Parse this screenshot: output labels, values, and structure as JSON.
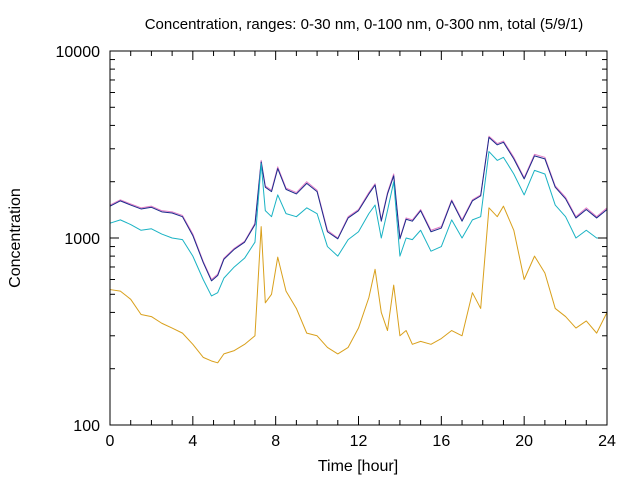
{
  "chart_data": {
    "type": "line",
    "title": "Concentration, ranges: 0-30 nm, 0-100 nm, 0-300 nm, total (5/9/1)",
    "xlabel": "Time [hour]",
    "ylabel": "Concentration",
    "xlim": [
      0,
      24
    ],
    "ylim": [
      100,
      10000
    ],
    "yscale": "log",
    "grid": false,
    "x_ticks": [
      0,
      4,
      8,
      12,
      16,
      20,
      24
    ],
    "x_tick_labels": [
      "0",
      "4",
      "8",
      "12",
      "16",
      "20",
      "24"
    ],
    "y_ticks": [
      100,
      1000,
      10000
    ],
    "y_tick_labels": [
      "100",
      "1000",
      "10000"
    ],
    "x": [
      0,
      0.5,
      1,
      1.5,
      2,
      2.5,
      3,
      3.5,
      4,
      4.5,
      4.9,
      5.2,
      5.5,
      6,
      6.5,
      7,
      7.3,
      7.5,
      7.8,
      8.1,
      8.5,
      9,
      9.5,
      10,
      10.5,
      11,
      11.5,
      12,
      12.5,
      12.8,
      13.1,
      13.4,
      13.7,
      14,
      14.3,
      14.6,
      15,
      15.5,
      16,
      16.5,
      17,
      17.5,
      17.9,
      18.3,
      18.7,
      19,
      19.5,
      20,
      20.5,
      21,
      21.5,
      22,
      22.5,
      23,
      23.5,
      24
    ],
    "series": [
      {
        "color": "#e07cc5",
        "values": [
          1500,
          1600,
          1520,
          1450,
          1480,
          1400,
          1380,
          1320,
          1050,
          750,
          600,
          640,
          780,
          880,
          960,
          1200,
          2600,
          1900,
          1800,
          2400,
          1850,
          1750,
          2000,
          1800,
          1100,
          1000,
          1300,
          1420,
          1750,
          1950,
          1250,
          1750,
          2200,
          1000,
          1280,
          1250,
          1420,
          1100,
          1150,
          1600,
          1250,
          1600,
          1700,
          3500,
          3200,
          3300,
          2700,
          2100,
          2800,
          2700,
          1900,
          1650,
          1300,
          1450,
          1300,
          1450
        ]
      },
      {
        "color": "#1a2b8c",
        "values": [
          1480,
          1580,
          1500,
          1430,
          1460,
          1380,
          1360,
          1300,
          1030,
          740,
          590,
          630,
          770,
          870,
          950,
          1180,
          2550,
          1870,
          1770,
          2350,
          1820,
          1720,
          1960,
          1770,
          1080,
          990,
          1280,
          1400,
          1720,
          1920,
          1230,
          1720,
          2150,
          990,
          1260,
          1230,
          1400,
          1080,
          1130,
          1580,
          1230,
          1580,
          1680,
          3450,
          3150,
          3250,
          2650,
          2070,
          2750,
          2650,
          1870,
          1620,
          1280,
          1420,
          1280,
          1420
        ]
      },
      {
        "color": "#1ab3c4",
        "values": [
          1200,
          1250,
          1180,
          1100,
          1120,
          1050,
          1000,
          980,
          800,
          600,
          490,
          510,
          610,
          700,
          780,
          950,
          2500,
          1400,
          1300,
          1700,
          1350,
          1300,
          1450,
          1350,
          900,
          800,
          980,
          1080,
          1350,
          1500,
          1000,
          1400,
          2000,
          800,
          1000,
          980,
          1100,
          850,
          900,
          1250,
          1000,
          1250,
          1300,
          2900,
          2600,
          2700,
          2200,
          1700,
          2300,
          2200,
          1500,
          1300,
          1000,
          1100,
          1000,
          1000
        ]
      },
      {
        "color": "#d9a01c",
        "values": [
          530,
          520,
          470,
          390,
          380,
          350,
          330,
          310,
          270,
          230,
          220,
          215,
          240,
          250,
          270,
          300,
          1150,
          450,
          500,
          790,
          520,
          420,
          310,
          300,
          260,
          240,
          260,
          330,
          480,
          680,
          400,
          320,
          560,
          300,
          320,
          270,
          280,
          270,
          290,
          320,
          300,
          510,
          420,
          1450,
          1300,
          1480,
          1100,
          600,
          800,
          650,
          420,
          380,
          330,
          360,
          310,
          400
        ]
      }
    ]
  }
}
